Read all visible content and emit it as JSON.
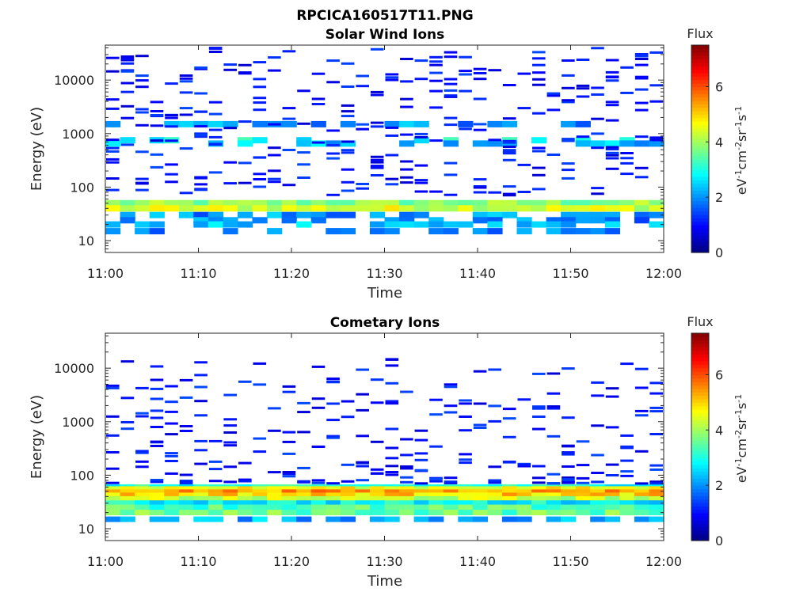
{
  "figure": {
    "title": "RPCICA160517T11.PNG"
  },
  "colorbar": {
    "title": "Flux",
    "label_parts": [
      "eV",
      "-1",
      "cm",
      "-2",
      "sr",
      "-1",
      "s",
      "-1"
    ],
    "ticks": [
      "0",
      "2",
      "4",
      "6"
    ],
    "range": [
      0,
      7.5
    ]
  },
  "chart_data": [
    {
      "type": "heatmap",
      "title": "Solar Wind Ions",
      "xlabel": "Time",
      "ylabel": "Energy (eV)",
      "x_ticks": [
        "11:00",
        "11:10",
        "11:20",
        "11:30",
        "11:40",
        "11:50",
        "12:00"
      ],
      "x_range_minutes": [
        0,
        60
      ],
      "y_scale": "log",
      "y_ticks": [
        "10",
        "100",
        "1000",
        "10000"
      ],
      "y_range": [
        6,
        45000
      ],
      "grid": false,
      "colorbar_title": "Flux",
      "time_bins": 38,
      "energy_bands": [
        {
          "energy": 50,
          "flux": 3.8,
          "note": "band 45-62 eV"
        },
        {
          "energy": 40,
          "flux": 4.4,
          "note": "band 36-48 eV"
        },
        {
          "energy": 30,
          "flux": 2.0
        },
        {
          "energy": 24,
          "flux": 1.9
        },
        {
          "energy": 20,
          "flux": 2.3
        },
        {
          "energy": 15,
          "flux": 1.8
        },
        {
          "energy": 1500,
          "flux": 2.0
        },
        {
          "energy": 750,
          "flux": 3.0
        },
        {
          "energy": 650,
          "flux": 2.3
        }
      ]
    },
    {
      "type": "heatmap",
      "title": "Cometary Ions",
      "xlabel": "Time",
      "ylabel": "Energy (eV)",
      "x_ticks": [
        "11:00",
        "11:10",
        "11:20",
        "11:30",
        "11:40",
        "11:50",
        "12:00"
      ],
      "x_range_minutes": [
        0,
        60
      ],
      "y_scale": "log",
      "y_ticks": [
        "10",
        "100",
        "1000",
        "10000"
      ],
      "y_range": [
        6,
        45000
      ],
      "grid": false,
      "colorbar_title": "Flux",
      "time_bins": 38,
      "energy_bands": [
        {
          "energy": 60,
          "flux": 3.0
        },
        {
          "energy": 55,
          "flux": 4.6
        },
        {
          "energy": 48,
          "flux": 5.4
        },
        {
          "energy": 42,
          "flux": 5.0
        },
        {
          "energy": 36,
          "flux": 4.2
        },
        {
          "energy": 30,
          "flux": 2.8
        },
        {
          "energy": 25,
          "flux": 3.4
        },
        {
          "energy": 20,
          "flux": 3.6
        },
        {
          "energy": 15,
          "flux": 2.2
        }
      ]
    }
  ]
}
